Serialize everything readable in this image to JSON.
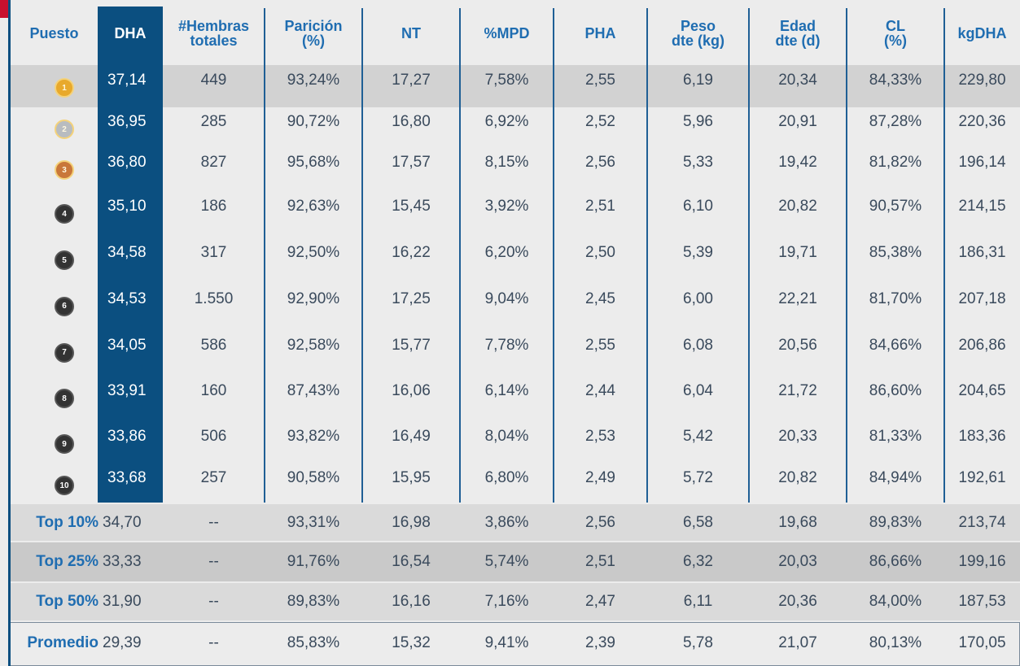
{
  "table": {
    "header": [
      [
        "Puesto"
      ],
      [
        "DHA"
      ],
      [
        "#Hembras",
        "totales"
      ],
      [
        "Parición",
        "(%)"
      ],
      [
        "NT"
      ],
      [
        "%MPD"
      ],
      [
        "PHA"
      ],
      [
        "Peso",
        "dte (kg)"
      ],
      [
        "Edad",
        "dte (d)"
      ],
      [
        "CL",
        "(%)"
      ],
      [
        "kgDHA"
      ]
    ],
    "rows": [
      [
        "1",
        "37,14",
        "449",
        "93,24%",
        "17,27",
        "7,58%",
        "2,55",
        "6,19",
        "20,34",
        "84,33%",
        "229,80"
      ],
      [
        "2",
        "36,95",
        "285",
        "90,72%",
        "16,80",
        "6,92%",
        "2,52",
        "5,96",
        "20,91",
        "87,28%",
        "220,36"
      ],
      [
        "3",
        "36,80",
        "827",
        "95,68%",
        "17,57",
        "8,15%",
        "2,56",
        "5,33",
        "19,42",
        "81,82%",
        "196,14"
      ],
      [
        "4",
        "35,10",
        "186",
        "92,63%",
        "15,45",
        "3,92%",
        "2,51",
        "6,10",
        "20,82",
        "90,57%",
        "214,15"
      ],
      [
        "5",
        "34,58",
        "317",
        "92,50%",
        "16,22",
        "6,20%",
        "2,50",
        "5,39",
        "19,71",
        "85,38%",
        "186,31"
      ],
      [
        "6",
        "34,53",
        "1.550",
        "92,90%",
        "17,25",
        "9,04%",
        "2,45",
        "6,00",
        "22,21",
        "81,70%",
        "207,18"
      ],
      [
        "7",
        "34,05",
        "586",
        "92,58%",
        "15,77",
        "7,78%",
        "2,55",
        "6,08",
        "20,56",
        "84,66%",
        "206,86"
      ],
      [
        "8",
        "33,91",
        "160",
        "87,43%",
        "16,06",
        "6,14%",
        "2,44",
        "6,04",
        "21,72",
        "86,60%",
        "204,65"
      ],
      [
        "9",
        "33,86",
        "506",
        "93,82%",
        "16,49",
        "8,04%",
        "2,53",
        "5,42",
        "20,33",
        "81,33%",
        "183,36"
      ],
      [
        "10",
        "33,68",
        "257",
        "90,58%",
        "15,95",
        "6,80%",
        "2,49",
        "5,72",
        "20,82",
        "84,94%",
        "192,61"
      ]
    ],
    "summary": [
      [
        "Top 10%",
        "34,70",
        "--",
        "93,31%",
        "16,98",
        "3,86%",
        "2,56",
        "6,58",
        "19,68",
        "89,83%",
        "213,74"
      ],
      [
        "Top 25%",
        "33,33",
        "--",
        "91,76%",
        "16,54",
        "5,74%",
        "2,51",
        "6,32",
        "20,03",
        "86,66%",
        "199,16"
      ],
      [
        "Top 50%",
        "31,90",
        "--",
        "89,83%",
        "16,16",
        "7,16%",
        "2,47",
        "6,11",
        "20,36",
        "84,00%",
        "187,53"
      ],
      [
        "Promedio",
        "29,39",
        "--",
        "85,83%",
        "15,32",
        "9,41%",
        "2,39",
        "5,78",
        "21,07",
        "80,13%",
        "170,05"
      ]
    ]
  }
}
